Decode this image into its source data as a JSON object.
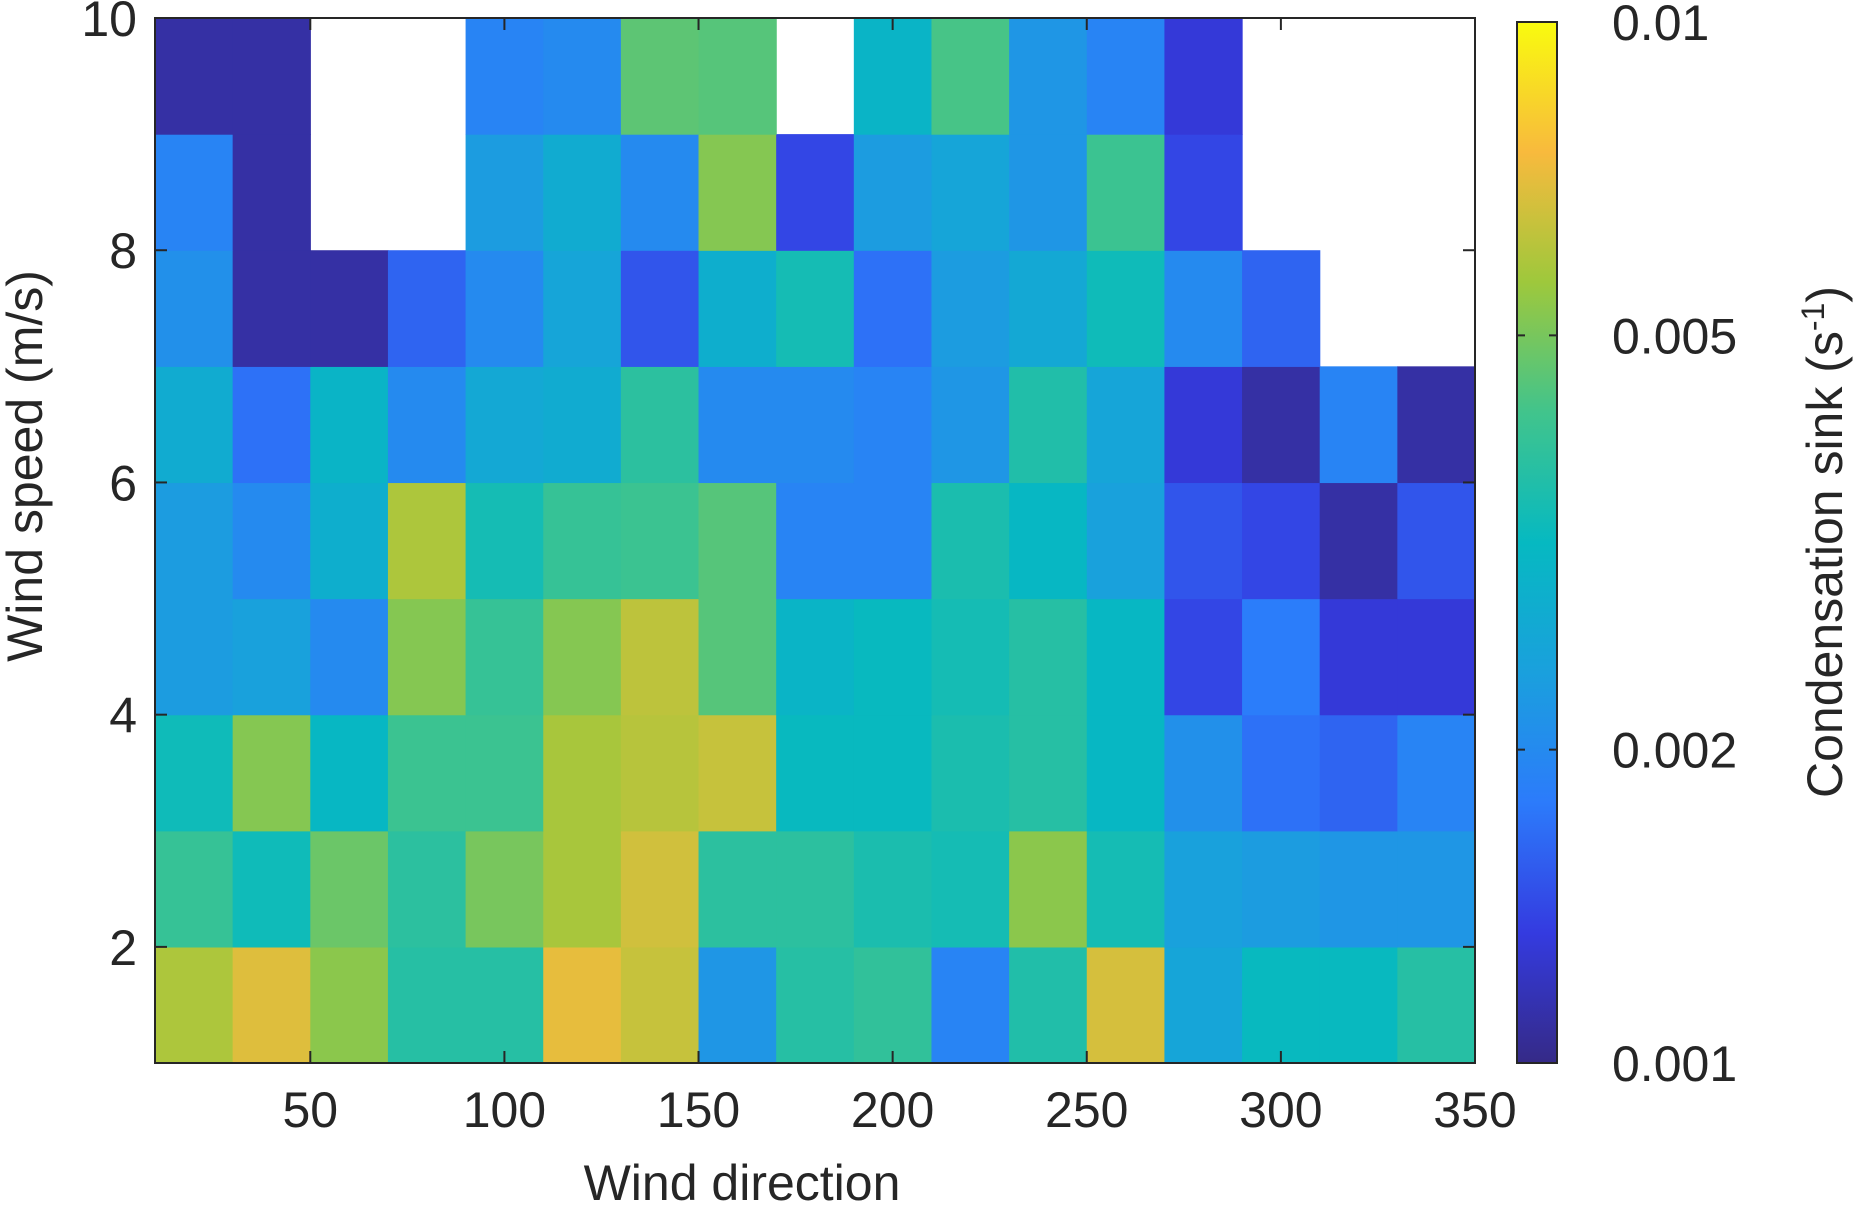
{
  "chart_data": {
    "type": "heatmap",
    "xlabel": "Wind direction",
    "ylabel": "Wind speed (m/s)",
    "x_ticks": [
      50,
      100,
      150,
      200,
      250,
      300,
      350
    ],
    "x_tick_labels": [
      "50",
      "100",
      "150",
      "200",
      "250",
      "300",
      "350"
    ],
    "y_ticks": [
      2,
      4,
      6,
      8,
      10
    ],
    "y_tick_labels": [
      "2",
      "4",
      "6",
      "8",
      "10"
    ],
    "xlim": [
      10,
      350
    ],
    "ylim": [
      1,
      10
    ],
    "x_bin_edges": [
      10,
      30,
      50,
      70,
      90,
      110,
      130,
      150,
      170,
      190,
      210,
      230,
      250,
      270,
      290,
      310,
      330,
      350
    ],
    "y_bin_edges": [
      1,
      2,
      3,
      4,
      5,
      6,
      7,
      8,
      9,
      10
    ],
    "color_scale": "log",
    "colormap": "parula",
    "colorbar": {
      "label": "Condensation sink (s",
      "label_exponent": "-1",
      "label_suffix": ")",
      "range": [
        0.001,
        0.01
      ],
      "ticks": [
        0.001,
        0.002,
        0.005,
        0.01
      ],
      "tick_labels": [
        "0.001",
        "0.002",
        "0.005",
        "0.01"
      ]
    },
    "values": [
      [
        0.0059,
        0.0069,
        0.0053,
        0.0037,
        0.0037,
        0.0071,
        0.0064,
        0.0022,
        0.0037,
        0.0039,
        0.0019,
        0.0036,
        0.0067,
        0.0025,
        0.0032,
        0.0032,
        0.0037
      ],
      [
        0.004,
        0.0033,
        0.0048,
        0.0038,
        0.005,
        0.0058,
        0.0066,
        0.0038,
        0.0038,
        0.0035,
        0.0034,
        0.0053,
        0.0034,
        0.0024,
        0.0023,
        0.0022,
        0.0022
      ],
      [
        0.0033,
        0.0052,
        0.0031,
        0.0041,
        0.0041,
        0.0058,
        0.0061,
        0.0064,
        0.0032,
        0.0032,
        0.0035,
        0.0037,
        0.0031,
        0.0021,
        0.0017,
        0.0016,
        0.0019
      ],
      [
        0.0023,
        0.0024,
        0.002,
        0.0052,
        0.004,
        0.0052,
        0.0062,
        0.0045,
        0.003,
        0.0032,
        0.0034,
        0.0037,
        0.0031,
        0.0014,
        0.0018,
        0.0013,
        0.0013
      ],
      [
        0.0023,
        0.002,
        0.0028,
        0.0059,
        0.0034,
        0.004,
        0.0041,
        0.0045,
        0.0019,
        0.0019,
        0.0035,
        0.0031,
        0.0024,
        0.0015,
        0.0014,
        0.0011,
        0.0015
      ],
      [
        0.0027,
        0.0017,
        0.003,
        0.002,
        0.0026,
        0.0027,
        0.0038,
        0.002,
        0.002,
        0.0019,
        0.0022,
        0.0036,
        0.0025,
        0.0013,
        0.0011,
        0.0019,
        0.0011
      ],
      [
        0.0021,
        0.0011,
        0.0011,
        0.0016,
        0.002,
        0.0025,
        0.0015,
        0.0028,
        0.0034,
        0.0017,
        0.0023,
        0.0026,
        0.0033,
        0.002,
        0.0016,
        null,
        null
      ],
      [
        0.0019,
        0.0011,
        null,
        null,
        0.0023,
        0.0027,
        0.002,
        0.0052,
        0.0014,
        0.0023,
        0.0025,
        0.0022,
        0.0041,
        0.0014,
        null,
        null,
        null
      ],
      [
        0.0011,
        0.0011,
        null,
        null,
        0.0019,
        0.002,
        0.0046,
        0.0045,
        null,
        0.003,
        0.0043,
        0.0022,
        0.0019,
        0.0013,
        null,
        null,
        null
      ]
    ]
  }
}
